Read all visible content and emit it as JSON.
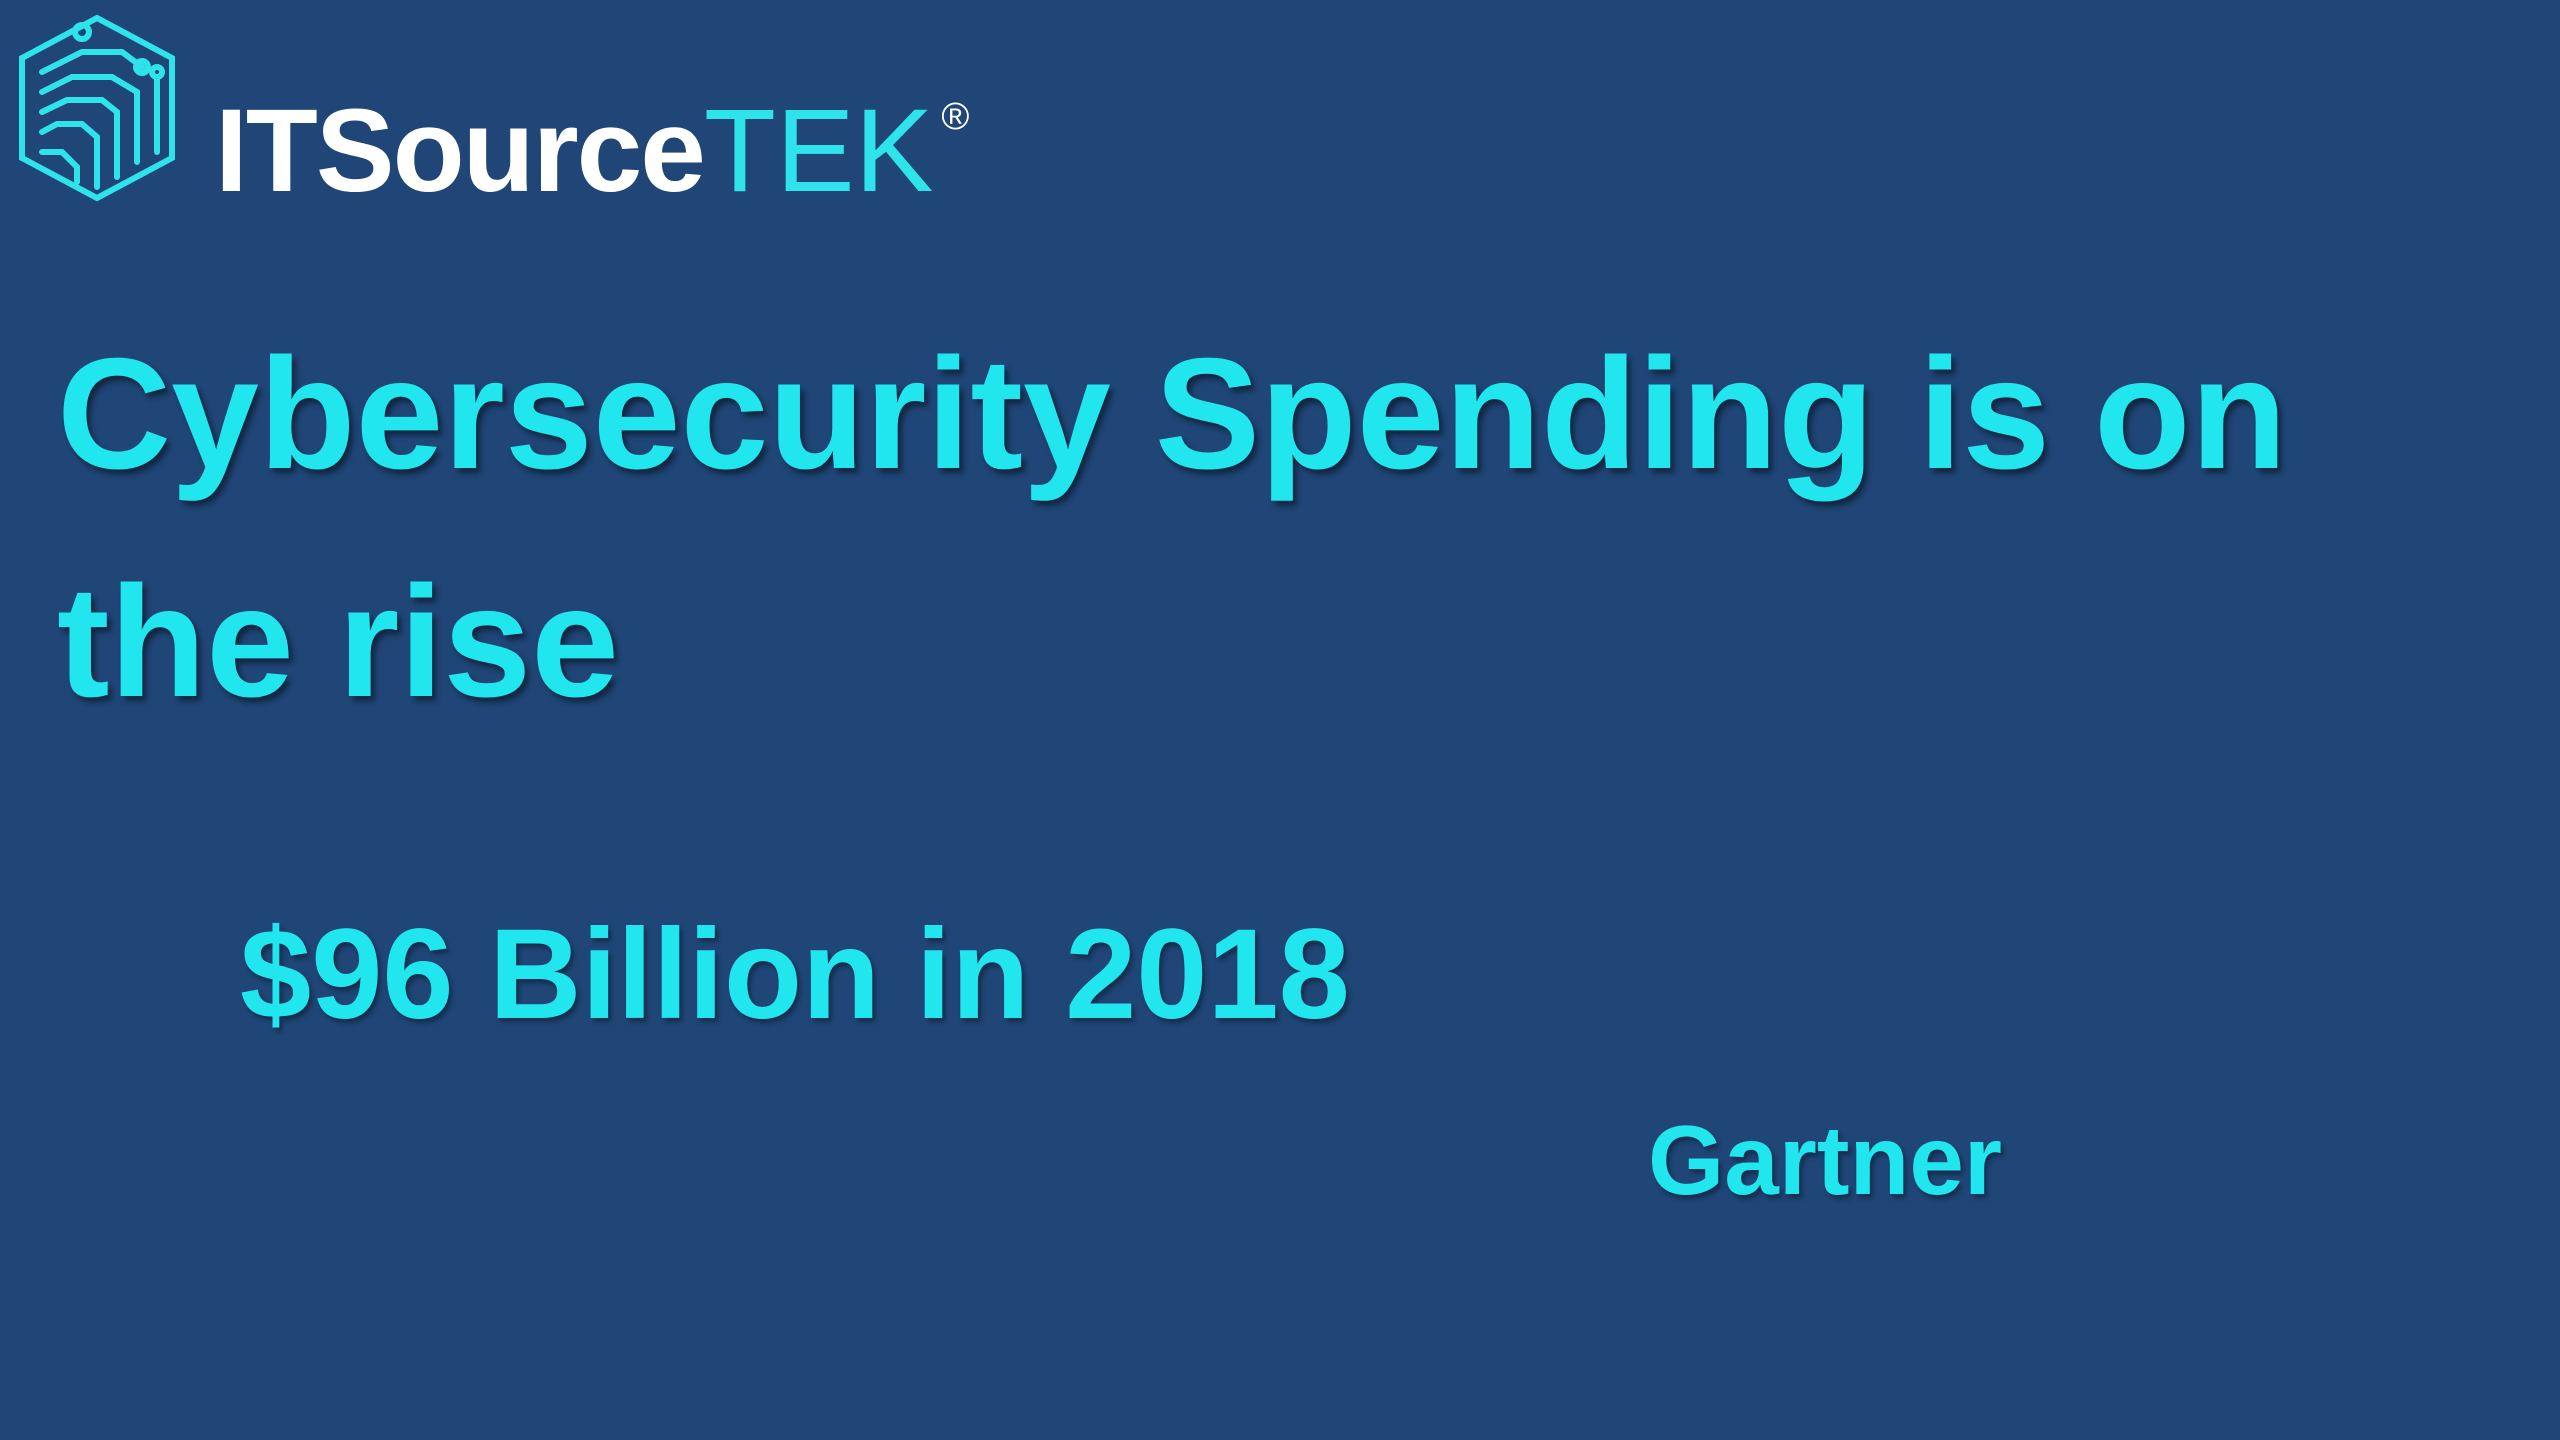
{
  "logo": {
    "brand": "ITSource",
    "brand_accent": "TEK",
    "registered": "®"
  },
  "slide": {
    "title": "Cybersecurity Spending is on the rise",
    "statistic": "$96 Billion in 2018",
    "source": "Gartner"
  }
}
